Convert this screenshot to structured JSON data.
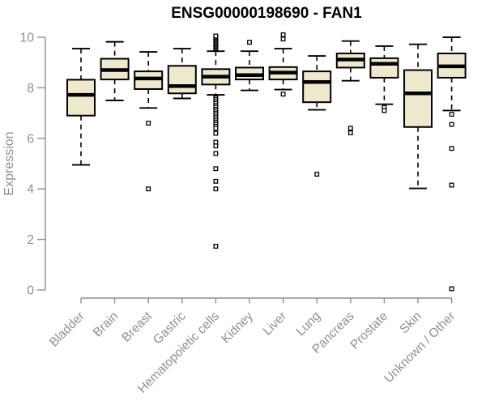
{
  "title": "ENSG00000198690 - FAN1",
  "chart_data": {
    "type": "box",
    "title": "ENSG00000198690 - FAN1",
    "xlabel": "",
    "ylabel": "Expression",
    "ylim": [
      0,
      10
    ],
    "y_ticks": [
      0,
      2,
      4,
      6,
      8,
      10
    ],
    "grid": false,
    "legend": "none",
    "x_tick_label_rotation_deg": 45,
    "categories": [
      "Bladder",
      "Brain",
      "Breast",
      "Gastric",
      "Hematopoietic cells",
      "Kidney",
      "Liver",
      "Lung",
      "Pancreas",
      "Prostate",
      "Skin",
      "Unknown / Other"
    ],
    "series": [
      {
        "label": "Bladder",
        "whisker_low": 4.95,
        "q1": 6.9,
        "median": 7.72,
        "q3": 8.32,
        "whisker_high": 9.55,
        "outliers": []
      },
      {
        "label": "Brain",
        "whisker_low": 7.5,
        "q1": 8.33,
        "median": 8.7,
        "q3": 9.15,
        "whisker_high": 9.82,
        "outliers": []
      },
      {
        "label": "Breast",
        "whisker_low": 7.2,
        "q1": 7.95,
        "median": 8.37,
        "q3": 8.65,
        "whisker_high": 9.42,
        "outliers": [
          6.6,
          4.0
        ]
      },
      {
        "label": "Gastric",
        "whisker_low": 7.58,
        "q1": 7.78,
        "median": 8.07,
        "q3": 8.87,
        "whisker_high": 9.55,
        "outliers": []
      },
      {
        "label": "Hematopoietic cells",
        "whisker_low": 7.72,
        "q1": 8.13,
        "median": 8.44,
        "q3": 8.74,
        "whisker_high": 9.45,
        "outliers": [
          9.55,
          9.6,
          9.65,
          9.7,
          9.75,
          9.8,
          9.85,
          9.9,
          9.95,
          10.0,
          10.05,
          7.6,
          7.53,
          7.45,
          7.38,
          7.3,
          7.23,
          7.15,
          7.08,
          7.0,
          6.93,
          6.85,
          6.78,
          6.7,
          6.63,
          6.55,
          6.48,
          6.4,
          6.2,
          5.85,
          5.7,
          5.4,
          4.8,
          4.3,
          4.0,
          1.73
        ]
      },
      {
        "label": "Kidney",
        "whisker_low": 7.9,
        "q1": 8.33,
        "median": 8.5,
        "q3": 8.8,
        "whisker_high": 9.45,
        "outliers": [
          9.8
        ]
      },
      {
        "label": "Liver",
        "whisker_low": 7.93,
        "q1": 8.33,
        "median": 8.6,
        "q3": 8.82,
        "whisker_high": 9.55,
        "outliers": [
          10.1,
          9.93,
          7.75
        ]
      },
      {
        "label": "Lung",
        "whisker_low": 7.13,
        "q1": 7.43,
        "median": 8.23,
        "q3": 8.65,
        "whisker_high": 9.26,
        "outliers": [
          4.58
        ]
      },
      {
        "label": "Pancreas",
        "whisker_low": 8.28,
        "q1": 8.8,
        "median": 9.12,
        "q3": 9.36,
        "whisker_high": 9.85,
        "outliers": [
          6.4,
          6.22
        ]
      },
      {
        "label": "Prostate",
        "whisker_low": 7.35,
        "q1": 8.4,
        "median": 8.95,
        "q3": 9.17,
        "whisker_high": 9.65,
        "outliers": [
          7.22,
          7.1
        ]
      },
      {
        "label": "Skin",
        "whisker_low": 4.02,
        "q1": 6.45,
        "median": 7.78,
        "q3": 8.7,
        "whisker_high": 9.72,
        "outliers": []
      },
      {
        "label": "Unknown / Other",
        "whisker_low": 7.1,
        "q1": 8.4,
        "median": 8.85,
        "q3": 9.36,
        "whisker_high": 10.0,
        "outliers": [
          6.95,
          6.55,
          5.6,
          4.15,
          0.05
        ]
      }
    ],
    "colors": {
      "background": "#FFFFFF",
      "box_fill": "#EEE8CD",
      "box_border": "#000000",
      "median": "#000000",
      "whisker": "#000000",
      "outlier": "#000000",
      "axis": "#8f8f8f",
      "title": "#000000"
    }
  }
}
